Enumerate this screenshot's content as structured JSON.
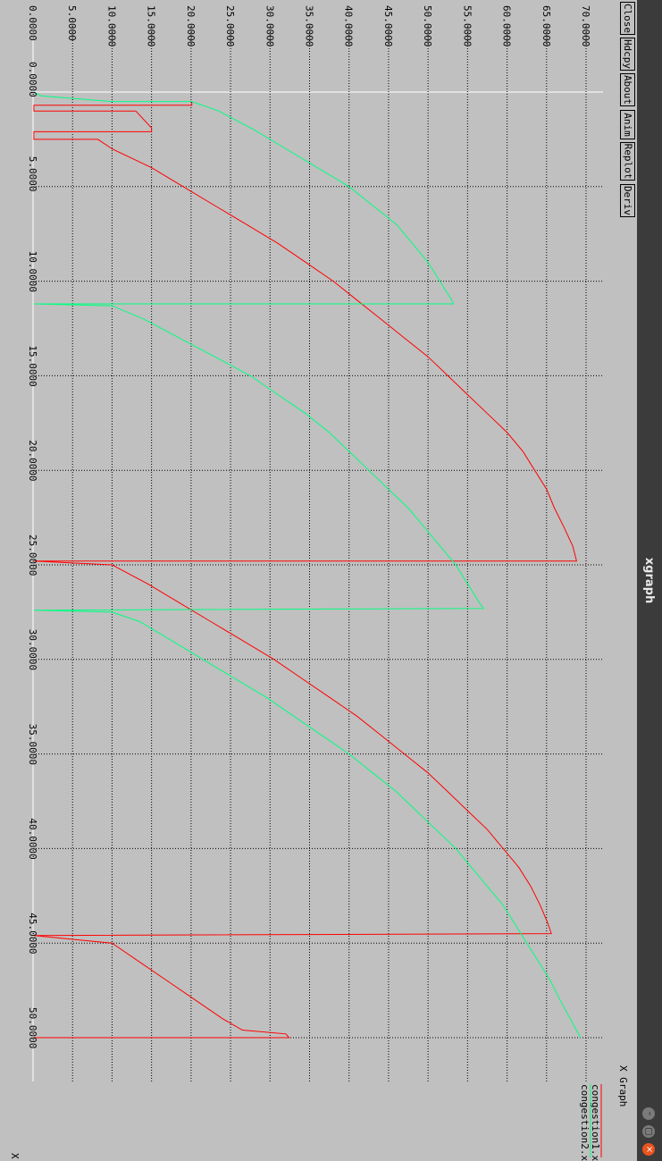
{
  "window": {
    "title": "xgraph"
  },
  "toolbar": {
    "close": "Close",
    "hdcpy": "Hdcpy",
    "about": "About",
    "anim": "Anim",
    "replot": "Replot",
    "deriv": "Deriv"
  },
  "window_controls": {
    "minimize_glyph": "–",
    "maximize_glyph": "▢",
    "close_glyph": "×"
  },
  "chart_data": {
    "type": "line",
    "title": "X Graph",
    "xlabel": "X",
    "ylabel": "",
    "xlim": [
      -0.5,
      52.5
    ],
    "ylim": [
      -0.5,
      72
    ],
    "grid": true,
    "x_ticks": [
      0,
      5,
      10,
      15,
      20,
      25,
      30,
      35,
      40,
      45,
      50
    ],
    "y_ticks": [
      0,
      5,
      10,
      15,
      20,
      25,
      30,
      35,
      40,
      45,
      50,
      55,
      60,
      65,
      70
    ],
    "x_tick_labels": [
      "0.0000",
      "5.0000",
      "10.0000",
      "15.0000",
      "20.0000",
      "25.0000",
      "30.0000",
      "35.0000",
      "40.0000",
      "45.0000",
      "50.0000"
    ],
    "y_tick_labels": [
      "0.0000",
      "5.0000",
      "10.0000",
      "15.0000",
      "20.0000",
      "25.0000",
      "30.0000",
      "35.0000",
      "40.0000",
      "45.0000",
      "50.0000",
      "55.0000",
      "60.0000",
      "65.0000",
      "70.0000"
    ],
    "series": [
      {
        "name": "congestion1.xg",
        "color": "#ff0000",
        "points": [
          [
            0.5,
            20.1
          ],
          [
            0.7,
            20.1
          ],
          [
            0.7,
            0.1
          ],
          [
            1.0,
            0.1
          ],
          [
            1.0,
            13.0
          ],
          [
            1.9,
            15.0
          ],
          [
            2.1,
            15.0
          ],
          [
            2.1,
            0.1
          ],
          [
            2.5,
            0.1
          ],
          [
            2.5,
            8.2
          ],
          [
            3.0,
            10.0
          ],
          [
            4.0,
            15.0
          ],
          [
            5.0,
            19.0
          ],
          [
            6.0,
            23.0
          ],
          [
            7.0,
            27.0
          ],
          [
            8.0,
            31.0
          ],
          [
            9.0,
            34.5
          ],
          [
            10.0,
            38.0
          ],
          [
            11.0,
            41.0
          ],
          [
            12.0,
            44.0
          ],
          [
            13.0,
            47.0
          ],
          [
            14.0,
            50.0
          ],
          [
            15.0,
            52.5
          ],
          [
            16.0,
            55.0
          ],
          [
            17.0,
            57.5
          ],
          [
            18.0,
            60.0
          ],
          [
            19.0,
            62.0
          ],
          [
            20.0,
            63.5
          ],
          [
            21.0,
            65.0
          ],
          [
            22.0,
            66.0
          ],
          [
            23.0,
            67.2
          ],
          [
            24.0,
            68.3
          ],
          [
            24.8,
            68.8
          ],
          [
            24.8,
            0.1
          ],
          [
            25.0,
            10.0
          ],
          [
            26.0,
            14.5
          ],
          [
            27.0,
            18.5
          ],
          [
            28.0,
            22.5
          ],
          [
            29.0,
            26.5
          ],
          [
            30.0,
            30.5
          ],
          [
            31.0,
            34.0
          ],
          [
            32.0,
            37.5
          ],
          [
            33.0,
            41.0
          ],
          [
            34.0,
            44.0
          ],
          [
            35.0,
            47.0
          ],
          [
            36.0,
            50.0
          ],
          [
            37.0,
            52.5
          ],
          [
            38.0,
            55.0
          ],
          [
            39.0,
            57.5
          ],
          [
            40.0,
            59.5
          ],
          [
            41.0,
            61.5
          ],
          [
            42.0,
            63.0
          ],
          [
            43.0,
            64.2
          ],
          [
            44.0,
            65.2
          ],
          [
            44.5,
            65.6
          ],
          [
            44.6,
            0.1
          ],
          [
            45.0,
            10.0
          ],
          [
            46.0,
            13.5
          ],
          [
            47.0,
            17.0
          ],
          [
            48.0,
            20.5
          ],
          [
            49.0,
            24.0
          ],
          [
            49.6,
            26.5
          ],
          [
            49.8,
            32.0
          ],
          [
            50.0,
            32.4
          ],
          [
            50.0,
            0.1
          ]
        ]
      },
      {
        "name": "congestion2.xg",
        "color": "#00ff80",
        "points": [
          [
            0.0,
            0.1
          ],
          [
            0.2,
            1.0
          ],
          [
            0.5,
            10.0
          ],
          [
            0.5,
            20.1
          ],
          [
            1.0,
            23.5
          ],
          [
            2.0,
            28.0
          ],
          [
            3.0,
            32.0
          ],
          [
            4.0,
            36.0
          ],
          [
            5.0,
            40.0
          ],
          [
            6.0,
            43.0
          ],
          [
            7.0,
            46.0
          ],
          [
            8.0,
            48.0
          ],
          [
            9.0,
            50.0
          ],
          [
            10.0,
            51.5
          ],
          [
            11.0,
            53.0
          ],
          [
            11.2,
            53.2
          ],
          [
            11.2,
            0.1
          ],
          [
            11.3,
            10.0
          ],
          [
            12.0,
            14.0
          ],
          [
            13.0,
            18.5
          ],
          [
            14.0,
            23.0
          ],
          [
            15.0,
            27.5
          ],
          [
            16.0,
            31.0
          ],
          [
            17.0,
            34.5
          ],
          [
            18.0,
            37.5
          ],
          [
            19.0,
            40.0
          ],
          [
            20.0,
            42.5
          ],
          [
            21.0,
            45.0
          ],
          [
            22.0,
            47.5
          ],
          [
            23.0,
            49.5
          ],
          [
            24.0,
            51.5
          ],
          [
            25.0,
            53.5
          ],
          [
            26.0,
            55.0
          ],
          [
            27.0,
            56.5
          ],
          [
            27.3,
            57.0
          ],
          [
            27.4,
            0.1
          ],
          [
            27.5,
            10.0
          ],
          [
            28.0,
            13.5
          ],
          [
            29.0,
            17.5
          ],
          [
            30.0,
            21.5
          ],
          [
            31.0,
            25.5
          ],
          [
            32.0,
            29.5
          ],
          [
            33.0,
            33.0
          ],
          [
            34.0,
            36.5
          ],
          [
            35.0,
            40.0
          ],
          [
            36.0,
            43.0
          ],
          [
            37.0,
            46.0
          ],
          [
            38.0,
            48.5
          ],
          [
            39.0,
            51.0
          ],
          [
            40.0,
            53.5
          ],
          [
            41.0,
            55.5
          ],
          [
            42.0,
            57.5
          ],
          [
            43.0,
            59.5
          ],
          [
            44.0,
            61.0
          ],
          [
            45.0,
            62.5
          ],
          [
            46.0,
            64.0
          ],
          [
            47.0,
            65.5
          ],
          [
            48.0,
            66.7
          ],
          [
            49.0,
            68.0
          ],
          [
            50.0,
            69.3
          ]
        ]
      }
    ]
  }
}
